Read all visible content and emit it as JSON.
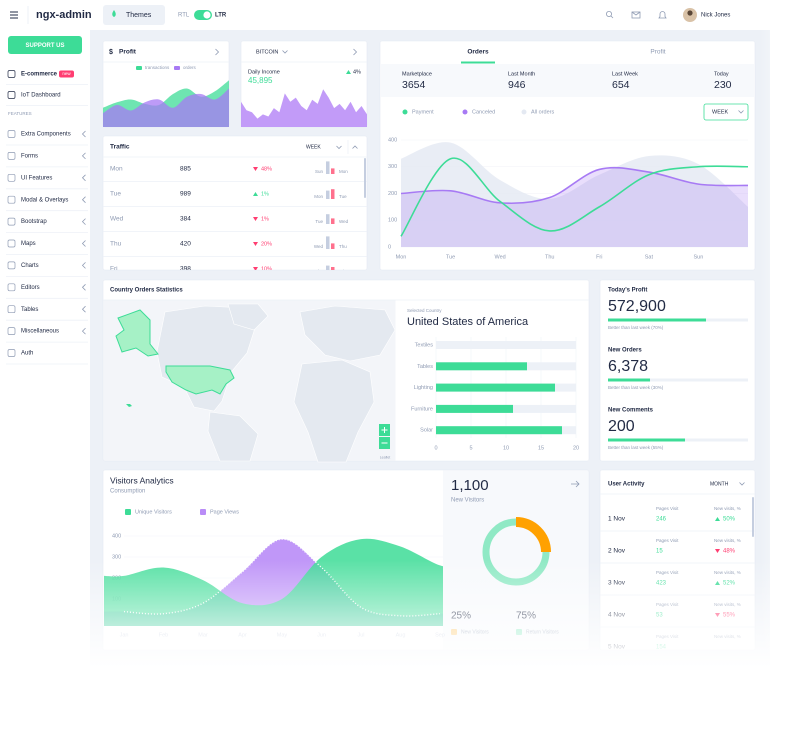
{
  "header": {
    "brand": "ngx-admin",
    "themes": "Themes",
    "rtl": "RTL",
    "ltr": "LTR",
    "user": "Nick Jones"
  },
  "sidebar": {
    "support": "SUPPORT US",
    "items": [
      {
        "label": "E-commerce",
        "badge": "new"
      },
      {
        "label": "IoT Dashboard"
      }
    ],
    "section": "FEATURES",
    "features": [
      "Extra Components",
      "Forms",
      "UI Features",
      "Modal & Overlays",
      "Bootstrap",
      "Maps",
      "Charts",
      "Editors",
      "Tables",
      "Miscellaneous",
      "Auth"
    ]
  },
  "profit_card": {
    "currency": "$",
    "title": "Profit",
    "chart": {
      "type": "area",
      "series": [
        {
          "name": "transactions",
          "color": "#3ddc97",
          "values": [
            35,
            45,
            50,
            42,
            40,
            60,
            70,
            55,
            65,
            85
          ]
        },
        {
          "name": "orders",
          "color": "#a77af4",
          "values": [
            25,
            40,
            30,
            45,
            50,
            35,
            55,
            60,
            50,
            70
          ]
        }
      ]
    }
  },
  "bitcoin_card": {
    "title": "BITCOIN",
    "label": "Daily Income",
    "value": "45,895",
    "change": "4%",
    "trend": "up",
    "chart": {
      "type": "area",
      "color": "#b78af7",
      "values": [
        60,
        40,
        35,
        20,
        30,
        25,
        45,
        35,
        80,
        60,
        70,
        50,
        40,
        65,
        55,
        90,
        70,
        45,
        55,
        40,
        60,
        35,
        50,
        30
      ]
    }
  },
  "traffic": {
    "title": "Traffic",
    "period": "WEEK",
    "rows": [
      {
        "day": "Mon",
        "value": 885,
        "change": "48%",
        "trend": "down",
        "prev": "Sun",
        "cur": "Mon",
        "bars": [
          90,
          40
        ]
      },
      {
        "day": "Tue",
        "value": 989,
        "change": "1%",
        "trend": "up",
        "prev": "Mon",
        "cur": "Tue",
        "bars": [
          60,
          70
        ]
      },
      {
        "day": "Wed",
        "value": 384,
        "change": "1%",
        "trend": "down",
        "prev": "Tue",
        "cur": "Wed",
        "bars": [
          70,
          40
        ]
      },
      {
        "day": "Thu",
        "value": 420,
        "change": "20%",
        "trend": "down",
        "prev": "Wed",
        "cur": "Thu",
        "bars": [
          90,
          40
        ]
      },
      {
        "day": "Fri",
        "value": 398,
        "change": "10%",
        "trend": "down",
        "prev": "Thu",
        "cur": "Fri",
        "bars": [
          60,
          50
        ]
      }
    ]
  },
  "orders_card": {
    "tabs": [
      "Orders",
      "Profit"
    ],
    "stats": [
      {
        "label": "Marketplace",
        "value": 3654
      },
      {
        "label": "Last Month",
        "value": 946
      },
      {
        "label": "Last Week",
        "value": 654
      },
      {
        "label": "Today",
        "value": 230
      }
    ],
    "period": "WEEK",
    "chart": {
      "type": "line",
      "categories": [
        "Mon",
        "Tue",
        "Wed",
        "Thu",
        "Fri",
        "Sat",
        "Sun",
        null
      ],
      "ylim": [
        0,
        400
      ],
      "yticks": [
        0,
        100,
        200,
        300,
        400
      ],
      "grid": true,
      "series": [
        {
          "name": "All orders",
          "color": "#e4e9f2",
          "style": "area",
          "values": [
            330,
            390,
            250,
            180,
            270,
            340,
            310,
            150
          ]
        },
        {
          "name": "Canceled",
          "color": "#a77af4",
          "style": "line-area",
          "values": [
            200,
            210,
            165,
            185,
            290,
            280,
            235,
            230
          ]
        },
        {
          "name": "Payment",
          "color": "#3ddc97",
          "style": "line",
          "values": [
            40,
            330,
            170,
            60,
            150,
            270,
            300,
            300
          ]
        }
      ]
    }
  },
  "country_card": {
    "title": "Country Orders Statistics",
    "selected_label": "Selected Country",
    "country": "United States of America",
    "attribution": "Leaflet",
    "chart": {
      "type": "bar",
      "orientation": "horizontal",
      "categories": [
        "Textiles",
        "Tables",
        "Lighting",
        "Furniture",
        "Solar"
      ],
      "values": [
        0,
        13,
        17,
        11,
        18
      ],
      "color": "#3ddc97",
      "xlim": [
        0,
        20
      ],
      "xticks": [
        0,
        5,
        10,
        15,
        20
      ]
    }
  },
  "profit_stats": [
    {
      "title": "Today's Profit",
      "value": "572,900",
      "progress": 70,
      "note": "Better than last week (70%)"
    },
    {
      "title": "New Orders",
      "value": "6,378",
      "progress": 30,
      "note": "Better than last week (30%)"
    },
    {
      "title": "New Comments",
      "value": "200",
      "progress": 55,
      "note": "Better than last week (55%)"
    }
  ],
  "visitors_card": {
    "title": "Visitors Analytics",
    "subtitle": "Consumption",
    "total": "1,100",
    "total_label": "New Visitors",
    "chart": {
      "type": "area",
      "categories": [
        "Jan",
        "Feb",
        "Mar",
        "Apr",
        "May",
        "Jun",
        "Jul",
        "Aug",
        "Sep"
      ],
      "ylim": [
        0,
        400
      ],
      "yticks": [
        0,
        100,
        200,
        300,
        400
      ],
      "series": [
        {
          "name": "Unique Visitors",
          "color": "#3ddc97",
          "values": [
            210,
            250,
            190,
            80,
            100,
            300,
            385,
            350,
            260
          ]
        },
        {
          "name": "Page Views",
          "color": "#b98cf7",
          "values": [
            40,
            30,
            80,
            230,
            385,
            250,
            60,
            20,
            30
          ]
        }
      ]
    },
    "donut": {
      "type": "pie",
      "values": [
        25,
        75
      ],
      "value_labels": [
        "25%",
        "75%"
      ],
      "labels": [
        "New Visitors",
        "Return Visitors"
      ],
      "colors": [
        "#ffa100",
        "#3ddc97"
      ]
    }
  },
  "user_activity": {
    "title": "User Activity",
    "period": "MONTH",
    "pages_label": "Pages Visit",
    "visits_label": "New visits, %",
    "rows": [
      {
        "date": "1 Nov",
        "pages": 246,
        "change": "50%",
        "trend": "up"
      },
      {
        "date": "2 Nov",
        "pages": 15,
        "change": "48%",
        "trend": "down"
      },
      {
        "date": "3 Nov",
        "pages": 423,
        "change": "52%",
        "trend": "up"
      },
      {
        "date": "4 Nov",
        "pages": 53,
        "change": "55%",
        "trend": "down"
      },
      {
        "date": "5 Nov",
        "pages": 154
      }
    ]
  }
}
